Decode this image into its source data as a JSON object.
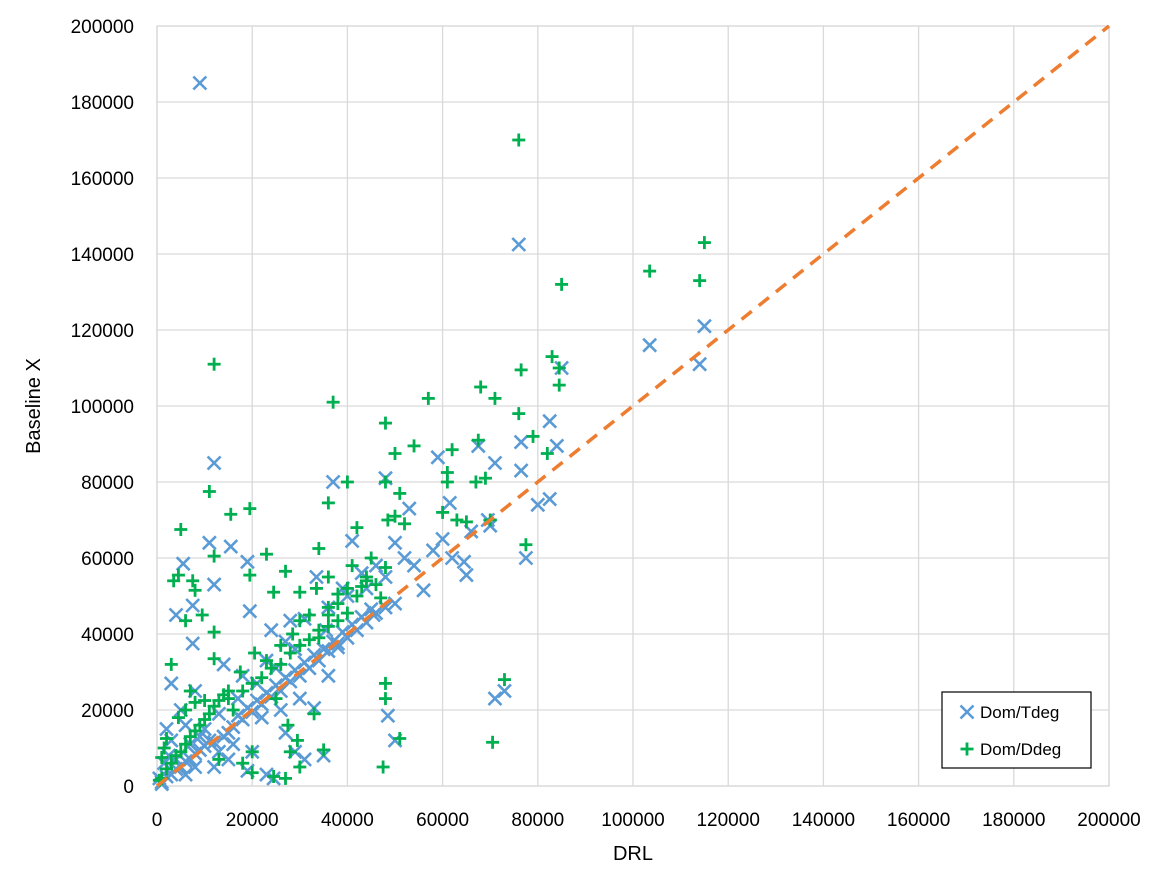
{
  "chart_data": {
    "type": "scatter",
    "title": "",
    "xlabel": "DRL",
    "ylabel": "Baseline X",
    "xlim": [
      0,
      200000
    ],
    "ylim": [
      0,
      200000
    ],
    "xticks": [
      "0",
      "20000",
      "40000",
      "60000",
      "80000",
      "100000",
      "120000",
      "140000",
      "160000",
      "180000",
      "200000"
    ],
    "yticks": [
      "0",
      "20000",
      "40000",
      "60000",
      "80000",
      "100000",
      "120000",
      "140000",
      "160000",
      "180000",
      "200000"
    ],
    "grid": true,
    "legend_position": "bottom-right",
    "reference_line": {
      "style": "dashed",
      "color": "#ed7d31",
      "x": [
        0,
        200000
      ],
      "y": [
        0,
        200000
      ]
    },
    "series": [
      {
        "name": "Dom/Tdeg",
        "marker": "x",
        "color": "#5b9bd5",
        "points": [
          [
            9000,
            185000
          ],
          [
            76000,
            142500
          ],
          [
            115000,
            121000
          ],
          [
            103500,
            116000
          ],
          [
            114000,
            111000
          ],
          [
            85000,
            110000
          ],
          [
            82500,
            96000
          ],
          [
            76500,
            90500
          ],
          [
            84000,
            89500
          ],
          [
            67500,
            89500
          ],
          [
            12000,
            85000
          ],
          [
            71000,
            85000
          ],
          [
            59000,
            86500
          ],
          [
            76500,
            83000
          ],
          [
            48000,
            81000
          ],
          [
            37000,
            80000
          ],
          [
            82500,
            75500
          ],
          [
            80000,
            74000
          ],
          [
            61500,
            74500
          ],
          [
            69500,
            70000
          ],
          [
            70000,
            68500
          ],
          [
            53000,
            73000
          ],
          [
            11000,
            64000
          ],
          [
            15500,
            63000
          ],
          [
            41000,
            64500
          ],
          [
            50000,
            64000
          ],
          [
            62000,
            60000
          ],
          [
            64500,
            59000
          ],
          [
            19000,
            59000
          ],
          [
            5500,
            58500
          ],
          [
            65000,
            55500
          ],
          [
            77500,
            60000
          ],
          [
            56000,
            51500
          ],
          [
            12000,
            53000
          ],
          [
            7500,
            47500
          ],
          [
            4000,
            45000
          ],
          [
            19500,
            46000
          ],
          [
            33500,
            55000
          ],
          [
            7500,
            37500
          ],
          [
            38000,
            37500
          ],
          [
            35500,
            41000
          ],
          [
            45500,
            45000
          ],
          [
            28000,
            43500
          ],
          [
            24000,
            41000
          ],
          [
            50000,
            48000
          ],
          [
            3000,
            27000
          ],
          [
            71000,
            23000
          ],
          [
            73000,
            25000
          ],
          [
            48500,
            18500
          ],
          [
            33000,
            20500
          ],
          [
            35000,
            8000
          ],
          [
            24500,
            2000
          ],
          [
            50000,
            12000
          ],
          [
            9000,
            13000
          ],
          [
            15000,
            14000
          ],
          [
            18000,
            17500
          ],
          [
            20000,
            19500
          ],
          [
            22000,
            21500
          ],
          [
            24000,
            23500
          ],
          [
            26000,
            25000
          ],
          [
            28000,
            27500
          ],
          [
            30000,
            29000
          ],
          [
            32000,
            31000
          ],
          [
            34000,
            33000
          ],
          [
            36000,
            35500
          ],
          [
            38000,
            36500
          ],
          [
            40000,
            39000
          ],
          [
            42000,
            41000
          ],
          [
            44000,
            43000
          ],
          [
            46000,
            45500
          ],
          [
            48000,
            47000
          ],
          [
            10000,
            10500
          ],
          [
            12000,
            11500
          ],
          [
            14000,
            13000
          ],
          [
            16000,
            15500
          ],
          [
            17000,
            18500
          ],
          [
            19000,
            20500
          ],
          [
            21000,
            22500
          ],
          [
            23000,
            24500
          ],
          [
            25000,
            26500
          ],
          [
            27000,
            28500
          ],
          [
            29000,
            30500
          ],
          [
            31000,
            32500
          ],
          [
            33000,
            34500
          ],
          [
            35000,
            36000
          ],
          [
            37000,
            38000
          ],
          [
            39000,
            40500
          ],
          [
            41000,
            42500
          ],
          [
            43000,
            44500
          ],
          [
            45000,
            46500
          ],
          [
            1000,
            1000
          ],
          [
            2000,
            2500
          ],
          [
            3000,
            3000
          ],
          [
            4000,
            4500
          ],
          [
            5000,
            5000
          ],
          [
            6000,
            6500
          ],
          [
            7000,
            7000
          ],
          [
            8000,
            8500
          ],
          [
            9000,
            9500
          ],
          [
            11000,
            12000
          ],
          [
            1500,
            6000
          ],
          [
            2500,
            8000
          ],
          [
            6000,
            3000
          ],
          [
            8000,
            5000
          ],
          [
            13000,
            9000
          ],
          [
            16000,
            11000
          ],
          [
            22000,
            18000
          ],
          [
            26000,
            20000
          ],
          [
            30000,
            23000
          ],
          [
            36000,
            29000
          ],
          [
            2000,
            15000
          ],
          [
            5000,
            20000
          ],
          [
            8000,
            25000
          ],
          [
            14000,
            32000
          ],
          [
            18000,
            29000
          ],
          [
            23000,
            33000
          ],
          [
            27000,
            38000
          ],
          [
            31000,
            44000
          ],
          [
            39000,
            52000
          ],
          [
            43000,
            56000
          ],
          [
            46000,
            58000
          ],
          [
            52000,
            60000
          ],
          [
            58000,
            62000
          ],
          [
            60000,
            65000
          ],
          [
            66000,
            67000
          ],
          [
            54000,
            58000
          ],
          [
            44000,
            52000
          ],
          [
            48000,
            55000
          ],
          [
            36000,
            47000
          ],
          [
            40000,
            50000
          ],
          [
            29000,
            36000
          ],
          [
            25000,
            31000
          ],
          [
            21000,
            27000
          ],
          [
            17000,
            23000
          ],
          [
            13000,
            19000
          ],
          [
            10000,
            15000
          ],
          [
            7000,
            11000
          ],
          [
            4000,
            7000
          ],
          [
            3000,
            12000
          ],
          [
            6000,
            16000
          ],
          [
            27000,
            14000
          ],
          [
            29000,
            9000
          ],
          [
            20000,
            9000
          ],
          [
            31000,
            7000
          ],
          [
            23000,
            3000
          ],
          [
            12000,
            5000
          ],
          [
            15000,
            7000
          ],
          [
            19000,
            4000
          ],
          [
            1000,
            500
          ],
          [
            500,
            2000
          ]
        ]
      },
      {
        "name": "Dom/Ddeg",
        "marker": "+",
        "color": "#00b050",
        "points": [
          [
            76000,
            170000
          ],
          [
            115000,
            143000
          ],
          [
            85000,
            132000
          ],
          [
            103500,
            135500
          ],
          [
            114000,
            133000
          ],
          [
            12000,
            111000
          ],
          [
            83000,
            113000
          ],
          [
            84500,
            110000
          ],
          [
            76500,
            109500
          ],
          [
            84500,
            105500
          ],
          [
            68000,
            105000
          ],
          [
            71000,
            102000
          ],
          [
            57000,
            102000
          ],
          [
            37000,
            101000
          ],
          [
            76000,
            98000
          ],
          [
            79000,
            92000
          ],
          [
            48000,
            95500
          ],
          [
            67500,
            91000
          ],
          [
            54000,
            89500
          ],
          [
            50000,
            87500
          ],
          [
            82000,
            87500
          ],
          [
            62000,
            88500
          ],
          [
            61000,
            82500
          ],
          [
            61000,
            80000
          ],
          [
            69000,
            81000
          ],
          [
            67000,
            80000
          ],
          [
            11000,
            77500
          ],
          [
            36000,
            74500
          ],
          [
            40000,
            80000
          ],
          [
            48000,
            80000
          ],
          [
            51000,
            77000
          ],
          [
            19500,
            73000
          ],
          [
            15500,
            71500
          ],
          [
            60000,
            72000
          ],
          [
            63000,
            70000
          ],
          [
            65000,
            69500
          ],
          [
            70000,
            70000
          ],
          [
            5000,
            67500
          ],
          [
            48500,
            70000
          ],
          [
            50000,
            71000
          ],
          [
            52000,
            69000
          ],
          [
            42000,
            68000
          ],
          [
            12000,
            60500
          ],
          [
            23000,
            61000
          ],
          [
            19500,
            55500
          ],
          [
            27000,
            56500
          ],
          [
            34000,
            62500
          ],
          [
            45000,
            60000
          ],
          [
            3500,
            54000
          ],
          [
            4500,
            55500
          ],
          [
            7500,
            54000
          ],
          [
            8000,
            51500
          ],
          [
            77500,
            63500
          ],
          [
            36000,
            55000
          ],
          [
            41000,
            58000
          ],
          [
            48000,
            57500
          ],
          [
            44000,
            54000
          ],
          [
            12000,
            40500
          ],
          [
            6000,
            43500
          ],
          [
            9500,
            45000
          ],
          [
            24500,
            51000
          ],
          [
            30000,
            51000
          ],
          [
            33500,
            52000
          ],
          [
            36000,
            47000
          ],
          [
            38000,
            50500
          ],
          [
            43000,
            52500
          ],
          [
            47000,
            49500
          ],
          [
            48000,
            27000
          ],
          [
            48000,
            23000
          ],
          [
            73000,
            28000
          ],
          [
            47500,
            5000
          ],
          [
            51000,
            12500
          ],
          [
            70500,
            11500
          ],
          [
            33000,
            19000
          ],
          [
            35000,
            9500
          ],
          [
            29500,
            12000
          ],
          [
            24500,
            2500
          ],
          [
            27000,
            2000
          ],
          [
            30000,
            5000
          ],
          [
            20000,
            3500
          ],
          [
            18000,
            6000
          ],
          [
            13000,
            7000
          ],
          [
            2000,
            12500
          ],
          [
            3000,
            32000
          ],
          [
            7000,
            25000
          ],
          [
            12000,
            33500
          ],
          [
            8000,
            22000
          ],
          [
            15000,
            25000
          ],
          [
            17500,
            30000
          ],
          [
            20500,
            35000
          ],
          [
            23000,
            33000
          ],
          [
            26000,
            37000
          ],
          [
            28500,
            40000
          ],
          [
            30000,
            43500
          ],
          [
            32000,
            45000
          ],
          [
            34000,
            41000
          ],
          [
            36000,
            45000
          ],
          [
            38000,
            48000
          ],
          [
            40000,
            52000
          ],
          [
            42000,
            50000
          ],
          [
            44000,
            55000
          ],
          [
            46000,
            53000
          ],
          [
            16000,
            20000
          ],
          [
            18000,
            25000
          ],
          [
            20000,
            27000
          ],
          [
            22000,
            28500
          ],
          [
            24000,
            31000
          ],
          [
            26000,
            32000
          ],
          [
            28000,
            35000
          ],
          [
            30000,
            37000
          ],
          [
            32000,
            38500
          ],
          [
            34000,
            39000
          ],
          [
            36000,
            42000
          ],
          [
            38000,
            43500
          ],
          [
            40000,
            45500
          ],
          [
            1000,
            2000
          ],
          [
            2000,
            4500
          ],
          [
            3000,
            6000
          ],
          [
            4000,
            8000
          ],
          [
            5000,
            9000
          ],
          [
            6000,
            11000
          ],
          [
            7000,
            13000
          ],
          [
            8000,
            14500
          ],
          [
            9000,
            16000
          ],
          [
            10000,
            17500
          ],
          [
            11000,
            19000
          ],
          [
            12000,
            21000
          ],
          [
            13000,
            22500
          ],
          [
            14000,
            24000
          ],
          [
            15000,
            23000
          ],
          [
            4500,
            18000
          ],
          [
            6000,
            20000
          ],
          [
            10000,
            22500
          ],
          [
            25000,
            23000
          ],
          [
            28000,
            9000
          ],
          [
            20000,
            9000
          ],
          [
            27500,
            16000
          ],
          [
            1000,
            7500
          ],
          [
            1500,
            10000
          ],
          [
            500,
            1500
          ]
        ]
      }
    ]
  }
}
